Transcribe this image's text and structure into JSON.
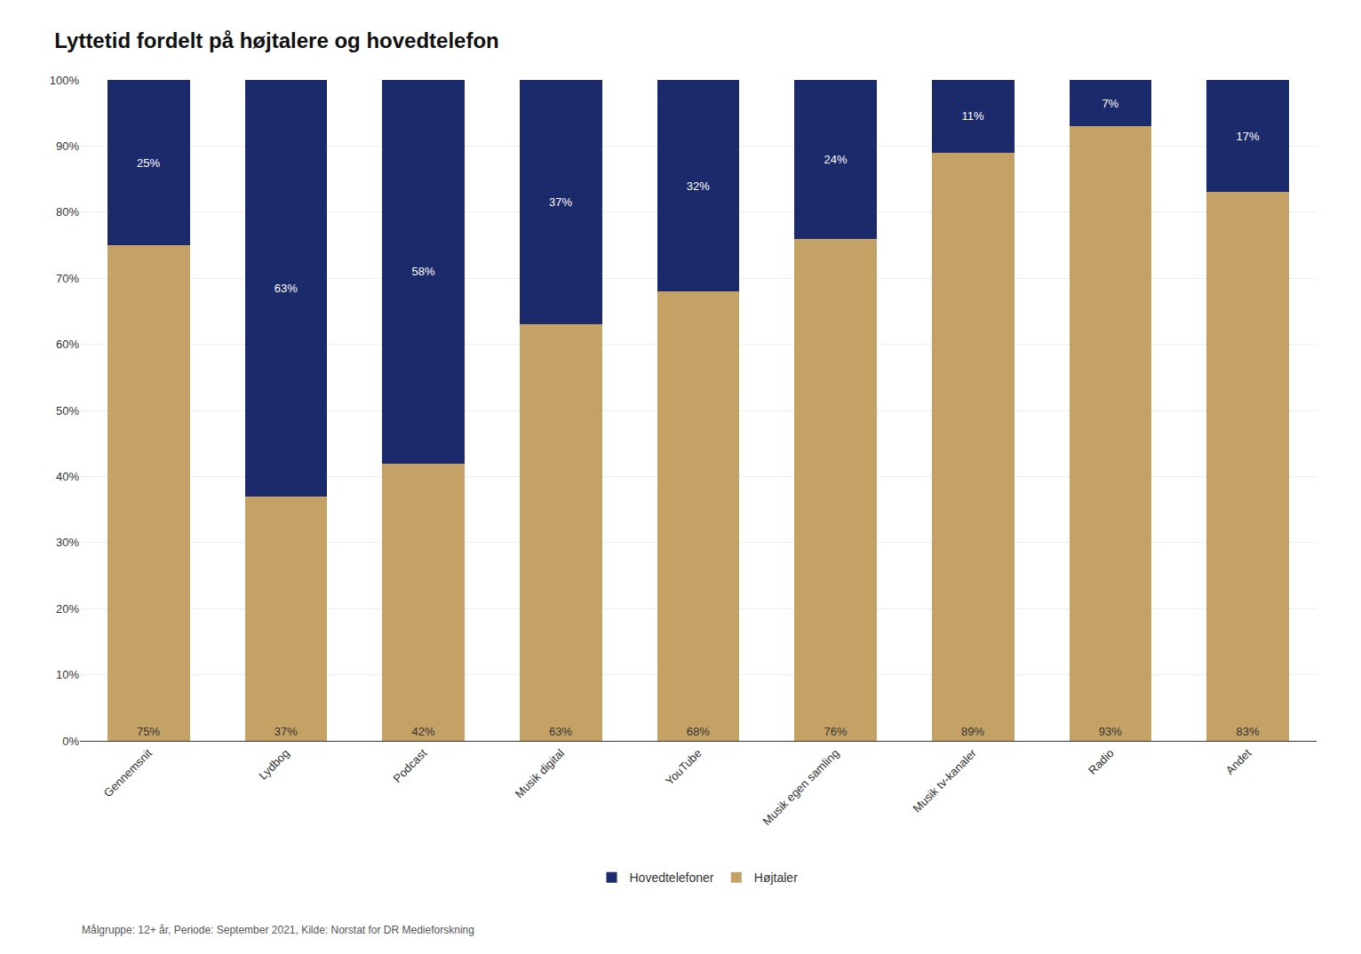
{
  "chart_data": {
    "type": "bar",
    "title": "Lyttetid fordelt på højtalere og hovedtelefon",
    "categories": [
      "Gennemsnit",
      "Lydbog",
      "Podcast",
      "Musik digital",
      "YouTube",
      "Musik egen samling",
      "Musik tv-kanaler",
      "Radio",
      "Andet"
    ],
    "series": [
      {
        "name": "Højtaler",
        "color": "#C4A265",
        "values": [
          75,
          37,
          42,
          63,
          68,
          76,
          89,
          93,
          83
        ],
        "value_labels": [
          "75%",
          "37%",
          "42%",
          "63%",
          "68%",
          "76%",
          "89%",
          "93%",
          "83%"
        ]
      },
      {
        "name": "Hovedtelefoner",
        "color": "#1B2A6B",
        "values": [
          25,
          63,
          58,
          37,
          32,
          24,
          11,
          7,
          17
        ],
        "value_labels": [
          "25%",
          "63%",
          "58%",
          "37%",
          "32%",
          "24%",
          "11%",
          "7%",
          "17%"
        ]
      }
    ],
    "stacked": true,
    "data_labels": true,
    "ylim": [
      0,
      100
    ],
    "yticks": [
      {
        "value": 0,
        "label": "0%"
      },
      {
        "value": 10,
        "label": "10%"
      },
      {
        "value": 20,
        "label": "20%"
      },
      {
        "value": 30,
        "label": "30%"
      },
      {
        "value": 40,
        "label": "40%"
      },
      {
        "value": 50,
        "label": "50%"
      },
      {
        "value": 60,
        "label": "60%"
      },
      {
        "value": 70,
        "label": "70%"
      },
      {
        "value": 80,
        "label": "80%"
      },
      {
        "value": 90,
        "label": "90%"
      },
      {
        "value": 100,
        "label": "100%"
      }
    ],
    "grid": true,
    "legend": "bottom",
    "annotations": [
      "Målgruppe: 12+ år, Periode: September 2021, Kilde: Norstat for DR Medieforskning"
    ]
  }
}
